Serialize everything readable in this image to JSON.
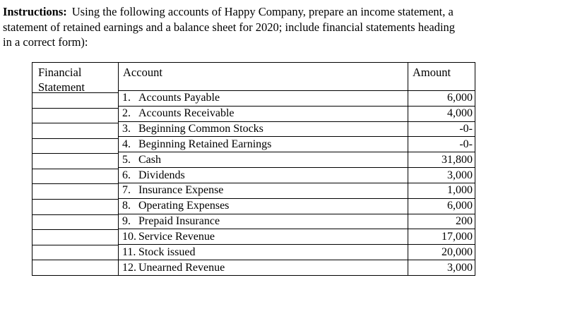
{
  "instructions": {
    "label": "Instructions:",
    "line1": "Using the following accounts of Happy Company, prepare an income statement, a",
    "line2": "statement of retained earnings and a balance sheet for 2020; include financial statements heading",
    "line3": "in a correct form):"
  },
  "table": {
    "headers": {
      "financial_statement": "Financial Statement",
      "account": "Account",
      "amount": "Amount"
    },
    "rows": [
      {
        "num": "1.",
        "account": "Accounts Payable",
        "amount": "6,000"
      },
      {
        "num": "2.",
        "account": "Accounts Receivable",
        "amount": "4,000"
      },
      {
        "num": "3.",
        "account": "Beginning Common Stocks",
        "amount": "-0-"
      },
      {
        "num": "4.",
        "account": "Beginning Retained Earnings",
        "amount": "-0-"
      },
      {
        "num": "5.",
        "account": "Cash",
        "amount": "31,800"
      },
      {
        "num": "6.",
        "account": "Dividends",
        "amount": "3,000"
      },
      {
        "num": "7.",
        "account": "Insurance Expense",
        "amount": "1,000"
      },
      {
        "num": "8.",
        "account": "Operating Expenses",
        "amount": "6,000"
      },
      {
        "num": "9.",
        "account": "Prepaid Insurance",
        "amount": "200"
      },
      {
        "num": "10.",
        "account": "Service Revenue",
        "amount": "17,000"
      },
      {
        "num": "11.",
        "account": "Stock issued",
        "amount": "20,000"
      },
      {
        "num": "12.",
        "account": "Unearned Revenue",
        "amount": "3,000"
      }
    ]
  },
  "colors": {
    "text": "#000000",
    "background": "#ffffff",
    "border": "#000000"
  }
}
